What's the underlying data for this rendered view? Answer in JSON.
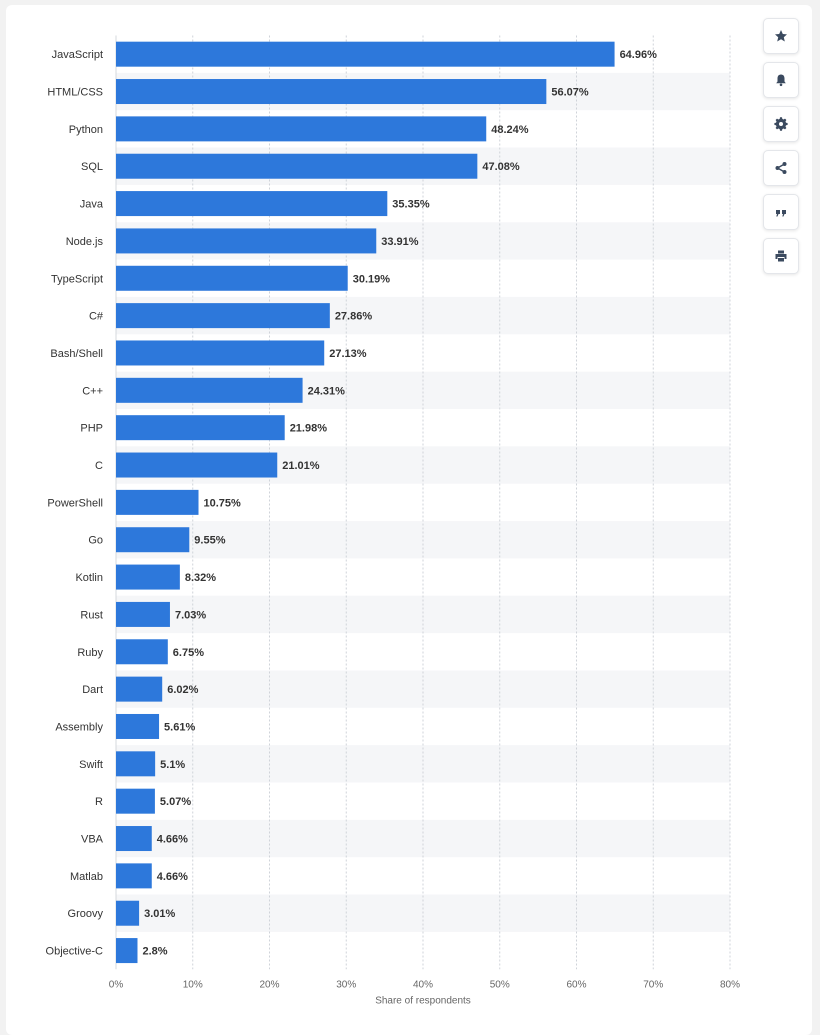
{
  "chart_data": {
    "type": "bar",
    "orientation": "horizontal",
    "categories": [
      "JavaScript",
      "HTML/CSS",
      "Python",
      "SQL",
      "Java",
      "Node.js",
      "TypeScript",
      "C#",
      "Bash/Shell",
      "C++",
      "PHP",
      "C",
      "PowerShell",
      "Go",
      "Kotlin",
      "Rust",
      "Ruby",
      "Dart",
      "Assembly",
      "Swift",
      "R",
      "VBA",
      "Matlab",
      "Groovy",
      "Objective-C"
    ],
    "values": [
      64.96,
      56.07,
      48.24,
      47.08,
      35.35,
      33.91,
      30.19,
      27.86,
      27.13,
      24.31,
      21.98,
      21.01,
      10.75,
      9.55,
      8.32,
      7.03,
      6.75,
      6.02,
      5.61,
      5.1,
      5.07,
      4.66,
      4.66,
      3.01,
      2.8
    ],
    "value_labels": [
      "64.96%",
      "56.07%",
      "48.24%",
      "47.08%",
      "35.35%",
      "33.91%",
      "30.19%",
      "27.86%",
      "27.13%",
      "24.31%",
      "21.98%",
      "21.01%",
      "10.75%",
      "9.55%",
      "8.32%",
      "7.03%",
      "6.75%",
      "6.02%",
      "5.61%",
      "5.1%",
      "5.07%",
      "4.66%",
      "4.66%",
      "3.01%",
      "2.8%"
    ],
    "xlabel": "Share of respondents",
    "xlim": [
      0,
      80
    ],
    "xticks": [
      0,
      10,
      20,
      30,
      40,
      50,
      60,
      70,
      80
    ],
    "xtick_labels": [
      "0%",
      "10%",
      "20%",
      "30%",
      "40%",
      "50%",
      "60%",
      "70%",
      "80%"
    ],
    "grid": true,
    "bar_color": "#2d78db"
  },
  "toolbar": {
    "buttons": [
      {
        "id": "favorite",
        "icon": "star-icon"
      },
      {
        "id": "notify",
        "icon": "bell-icon"
      },
      {
        "id": "settings",
        "icon": "gear-icon"
      },
      {
        "id": "share",
        "icon": "share-icon"
      },
      {
        "id": "cite",
        "icon": "quote-icon"
      },
      {
        "id": "print",
        "icon": "print-icon"
      }
    ],
    "icon_color": "#3b4a5f"
  }
}
